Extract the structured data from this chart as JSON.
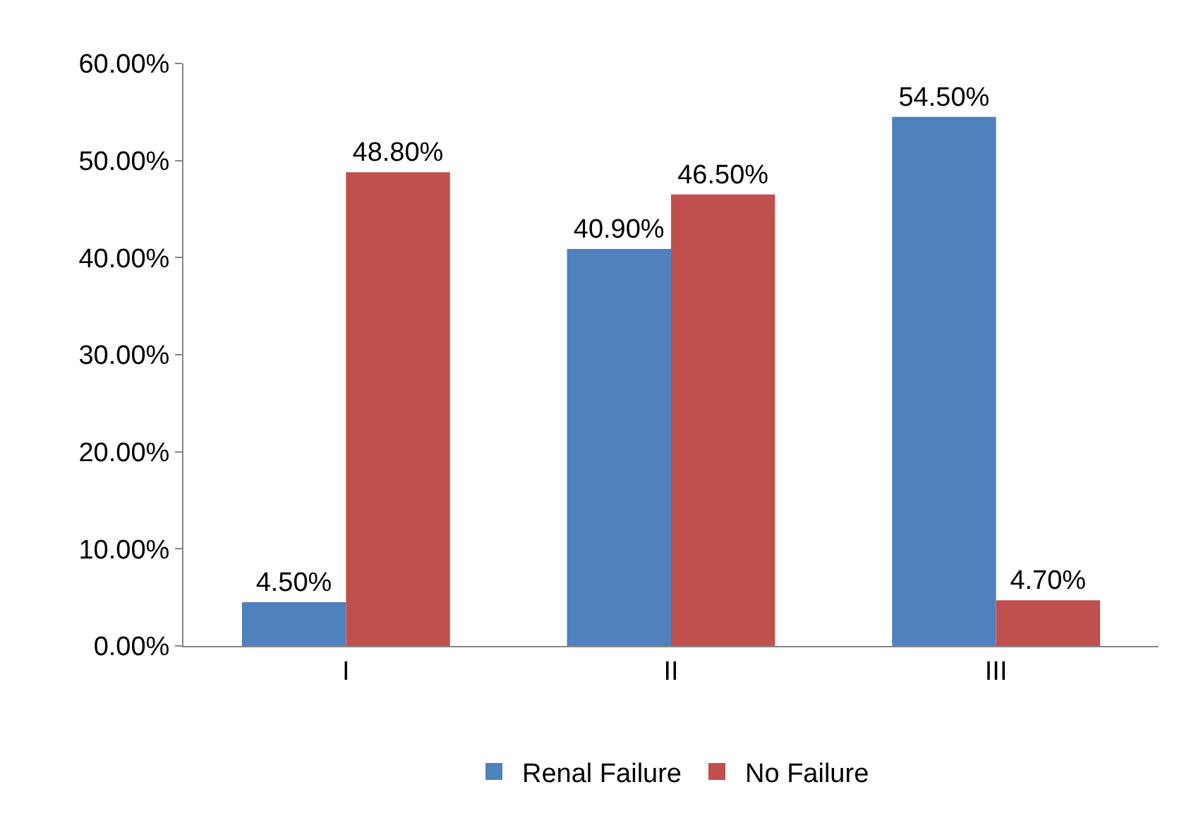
{
  "chart_data": {
    "type": "bar",
    "categories": [
      "I",
      "II",
      "III"
    ],
    "series": [
      {
        "name": "Renal Failure",
        "color": "#4f81bd",
        "values": [
          4.5,
          40.9,
          54.5
        ],
        "value_labels": [
          "4.50%",
          "40.90%",
          "54.50%"
        ]
      },
      {
        "name": "No Failure",
        "color": "#c0504d",
        "values": [
          48.8,
          46.5,
          4.7
        ],
        "value_labels": [
          "48.80%",
          "46.50%",
          "4.70%"
        ]
      }
    ],
    "ylim": [
      0,
      60
    ],
    "yticks": [
      {
        "value": 0,
        "label": "0.00%"
      },
      {
        "value": 10,
        "label": "10.00%"
      },
      {
        "value": 20,
        "label": "20.00%"
      },
      {
        "value": 30,
        "label": "30.00%"
      },
      {
        "value": 40,
        "label": "40.00%"
      },
      {
        "value": 50,
        "label": "50.00%"
      },
      {
        "value": 60,
        "label": "60.00%"
      }
    ],
    "legend": "bottom"
  }
}
